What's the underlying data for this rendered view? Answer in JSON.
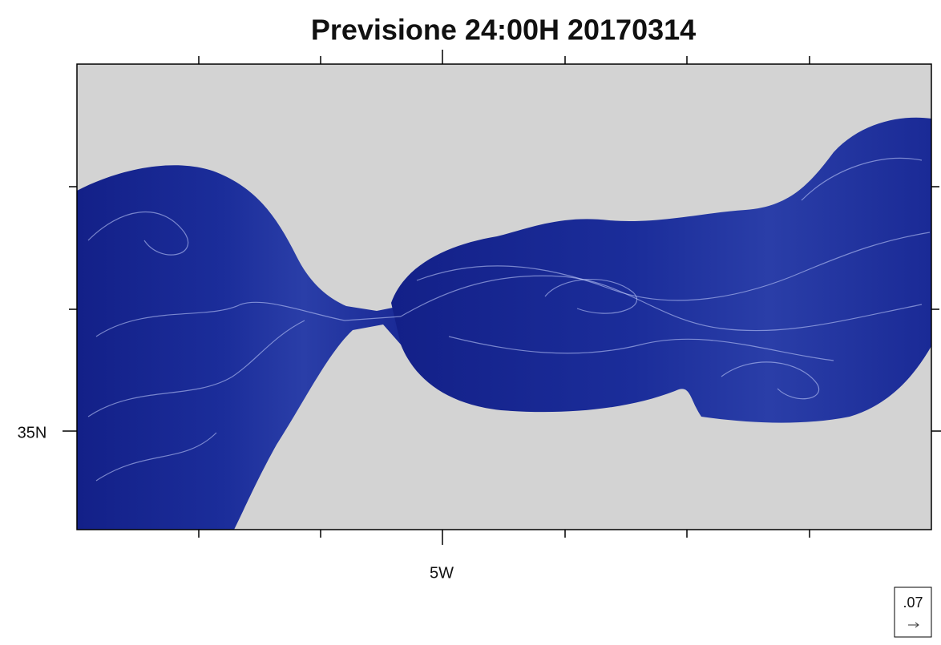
{
  "header": {
    "title": "Previsione 24:00H 20170314"
  },
  "map": {
    "lat_label": "35N",
    "lon_label": "5W",
    "reference_vector": ".07"
  }
}
